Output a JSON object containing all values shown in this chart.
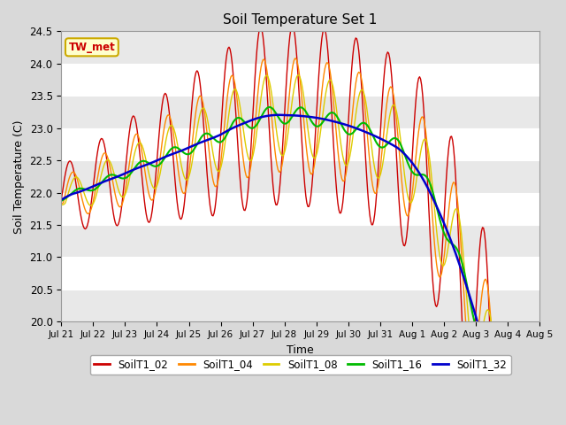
{
  "title": "Soil Temperature Set 1",
  "xlabel": "Time",
  "ylabel": "Soil Temperature (C)",
  "ylim": [
    20.0,
    24.5
  ],
  "series_names": [
    "SoilT1_02",
    "SoilT1_04",
    "SoilT1_08",
    "SoilT1_16",
    "SoilT1_32"
  ],
  "series_colors": [
    "#cc0000",
    "#ff8800",
    "#ddcc00",
    "#00bb00",
    "#0000cc"
  ],
  "series_linewidths": [
    1.0,
    1.0,
    1.0,
    1.5,
    1.8
  ],
  "xtick_labels": [
    "Jul 21",
    "Jul 22",
    "Jul 23",
    "Jul 24",
    "Jul 25",
    "Jul 26",
    "Jul 27",
    "Jul 28",
    "Jul 29",
    "Jul 30",
    "Jul 31",
    "Aug 1",
    "Aug 2",
    "Aug 3",
    "Aug 4",
    "Aug 5"
  ],
  "annotation_text": "TW_met",
  "annotation_color": "#cc0000",
  "annotation_bg": "#ffffcc",
  "annotation_border": "#ccaa00",
  "fig_bg": "#d9d9d9",
  "plot_bg": "#ffffff",
  "alt_bg": "#e8e8e8",
  "n_points": 480
}
